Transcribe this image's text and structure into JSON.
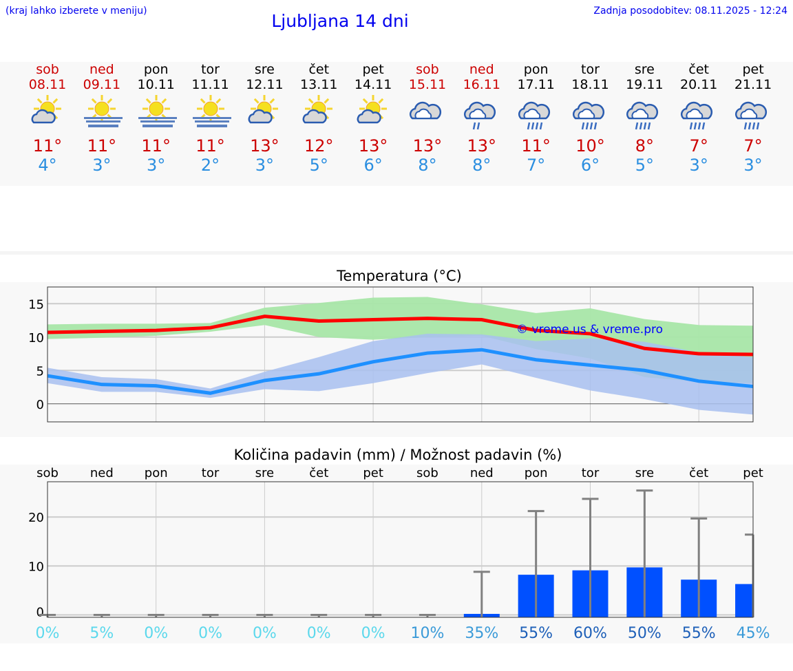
{
  "header": {
    "hint": "(kraj lahko izberete v meniju)",
    "title": "Ljubljana 14 dni",
    "updated": "Zadnja posodobitev: 08.11.2025 - 12:24"
  },
  "colors": {
    "weekend": "#cc0000",
    "weekday": "#000000",
    "max": "#ff0000",
    "min": "#1e90ff",
    "max_band": "#a8e6a8",
    "min_band": "#a8c0f0",
    "bar": "#0050ff"
  },
  "days": [
    {
      "name": "sob",
      "date": "08.11",
      "weekend": true,
      "icon": "partly-cloudy-icon",
      "max": "11°",
      "min": "4°"
    },
    {
      "name": "ned",
      "date": "09.11",
      "weekend": true,
      "icon": "sun-fog-icon",
      "max": "11°",
      "min": "3°"
    },
    {
      "name": "pon",
      "date": "10.11",
      "weekend": false,
      "icon": "sun-fog-icon",
      "max": "11°",
      "min": "3°"
    },
    {
      "name": "tor",
      "date": "11.11",
      "weekend": false,
      "icon": "sun-fog-icon",
      "max": "11°",
      "min": "2°"
    },
    {
      "name": "sre",
      "date": "12.11",
      "weekend": false,
      "icon": "partly-cloudy-icon",
      "max": "13°",
      "min": "3°"
    },
    {
      "name": "čet",
      "date": "13.11",
      "weekend": false,
      "icon": "partly-cloudy-icon",
      "max": "12°",
      "min": "5°"
    },
    {
      "name": "pet",
      "date": "14.11",
      "weekend": false,
      "icon": "partly-cloudy-icon",
      "max": "13°",
      "min": "6°"
    },
    {
      "name": "sob",
      "date": "15.11",
      "weekend": true,
      "icon": "cloudy-icon",
      "max": "13°",
      "min": "8°"
    },
    {
      "name": "ned",
      "date": "16.11",
      "weekend": true,
      "icon": "light-rain-icon",
      "max": "13°",
      "min": "8°"
    },
    {
      "name": "pon",
      "date": "17.11",
      "weekend": false,
      "icon": "rain-icon",
      "max": "11°",
      "min": "7°"
    },
    {
      "name": "tor",
      "date": "18.11",
      "weekend": false,
      "icon": "rain-icon",
      "max": "10°",
      "min": "6°"
    },
    {
      "name": "sre",
      "date": "19.11",
      "weekend": false,
      "icon": "rain-icon",
      "max": "8°",
      "min": "5°"
    },
    {
      "name": "čet",
      "date": "20.11",
      "weekend": false,
      "icon": "rain-icon",
      "max": "7°",
      "min": "3°"
    },
    {
      "name": "pet",
      "date": "21.11",
      "weekend": false,
      "icon": "rain-icon",
      "max": "7°",
      "min": "3°"
    }
  ],
  "chart_data": [
    {
      "type": "line",
      "title": "Temperatura (°C)",
      "watermark": "© vreme.us & vreme.pro",
      "ylim": [
        -2.7,
        17.5
      ],
      "yticks": [
        0,
        5,
        10,
        15
      ],
      "grid": true,
      "series": [
        {
          "values": [
            10.7,
            10.85,
            11.0,
            11.4,
            13.1,
            12.4,
            12.6,
            12.8,
            12.6,
            11.0,
            10.5,
            8.3,
            7.5,
            7.4
          ],
          "band_upper": [
            11.9,
            12.0,
            12.0,
            12.1,
            14.4,
            15.1,
            15.9,
            16.0,
            14.9,
            13.6,
            14.3,
            12.7,
            11.8,
            11.7
          ],
          "band_lower": [
            9.7,
            9.9,
            10.2,
            10.8,
            11.8,
            10.0,
            9.6,
            10.0,
            10.2,
            8.2,
            6.8,
            4.0,
            3.3,
            3.1
          ]
        },
        {
          "values": [
            4.2,
            2.9,
            2.7,
            1.6,
            3.5,
            4.5,
            6.3,
            7.6,
            8.1,
            6.6,
            5.8,
            5.0,
            3.4,
            2.6
          ],
          "band_upper": [
            5.4,
            4.0,
            3.7,
            2.3,
            4.8,
            7.0,
            9.4,
            10.5,
            10.4,
            9.4,
            9.8,
            9.3,
            7.7,
            7.0
          ],
          "band_lower": [
            3.1,
            1.8,
            1.8,
            0.9,
            2.2,
            1.9,
            3.1,
            4.6,
            5.9,
            3.9,
            2.0,
            0.7,
            -0.9,
            -1.6
          ]
        }
      ]
    },
    {
      "type": "bar",
      "title": "Količina padavin (mm) / Možnost padavin (%)",
      "categories": [
        "sob",
        "ned",
        "pon",
        "tor",
        "sre",
        "čet",
        "pet",
        "sob",
        "ned",
        "pon",
        "tor",
        "sre",
        "čet",
        "pet"
      ],
      "ylim": [
        -0.5,
        27.2
      ],
      "yticks": [
        0,
        10,
        20
      ],
      "grid": true,
      "values": [
        0,
        0,
        0,
        0,
        0,
        0,
        0,
        0,
        0.2,
        8.2,
        9.1,
        9.7,
        7.2,
        6.3
      ],
      "error_upper": [
        0,
        0,
        0,
        0,
        0,
        0,
        0,
        0,
        8.8,
        21.2,
        23.7,
        25.4,
        19.7,
        16.4
      ],
      "probability": [
        "0%",
        "5%",
        "0%",
        "0%",
        "0%",
        "0%",
        "0%",
        "10%",
        "35%",
        "55%",
        "60%",
        "50%",
        "55%",
        "45%"
      ]
    }
  ]
}
